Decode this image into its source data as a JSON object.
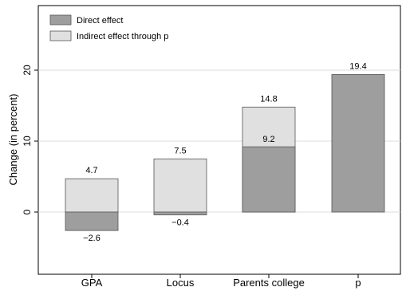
{
  "chart_data": {
    "type": "bar",
    "stacking": "overlay",
    "categories": [
      "GPA",
      "Locus",
      "Parents college",
      "p"
    ],
    "series": [
      {
        "name": "Direct effect",
        "color": "#9e9e9e",
        "values": [
          -2.6,
          -0.4,
          9.2,
          19.4
        ]
      },
      {
        "name": "Indirect effect through p",
        "color": "#e0e0e0",
        "values": [
          4.7,
          7.5,
          14.8,
          null
        ]
      }
    ],
    "data_labels": {
      "direct": [
        "−2.6",
        "−0.4",
        "9.2",
        "19.4"
      ],
      "indirect": [
        "4.7",
        "7.5",
        "14.8",
        ""
      ]
    },
    "ylabel": "Change (in percent)",
    "xlabel": "",
    "ylim": [
      -9,
      28.5
    ],
    "yticks": [
      0,
      10,
      20
    ],
    "grid": true,
    "legend_position": "top-left"
  }
}
